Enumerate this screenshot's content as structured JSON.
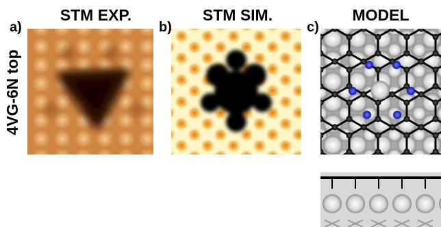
{
  "panels": [
    {
      "label": "a)",
      "title": "STM EXP."
    },
    {
      "label": "b)",
      "title": "STM SIM."
    },
    {
      "label": "c)",
      "title": "MODEL"
    }
  ],
  "row_label": "4VG-6N top"
}
